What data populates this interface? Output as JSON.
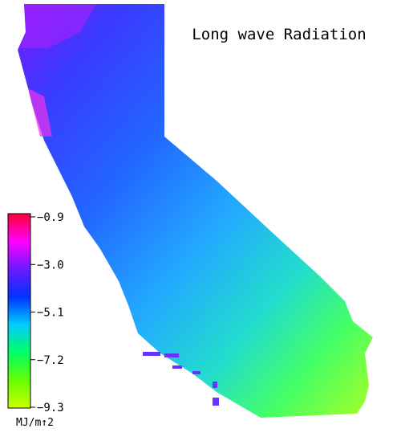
{
  "title": "Long wave Radiation",
  "colorbar": {
    "lim": [
      -9.3,
      -0.9
    ],
    "ticks": [
      {
        "value": -0.9,
        "label": "−0.9"
      },
      {
        "value": -3.0,
        "label": "−3.0"
      },
      {
        "value": -5.1,
        "label": "−5.1"
      },
      {
        "value": -7.2,
        "label": "−7.2"
      },
      {
        "value": -9.3,
        "label": "−9.3"
      }
    ],
    "colors": [
      "#ff0033",
      "#ff00ff",
      "#6a1aff",
      "#0033ff",
      "#00ccff",
      "#00ff66",
      "#66ff00",
      "#ccff00"
    ],
    "unit": "MJ/m↑2"
  }
}
